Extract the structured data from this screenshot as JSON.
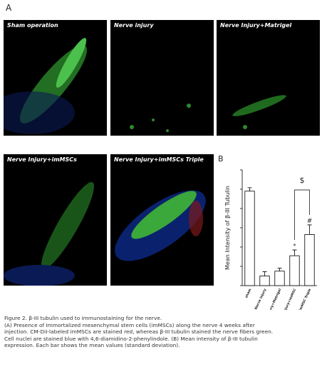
{
  "figure_label_a": "A",
  "figure_label_b": "B",
  "panels": [
    {
      "label": "Sham operation"
    },
    {
      "label": "Nerve injury"
    },
    {
      "label": "Nerve Injury+Matrigel"
    },
    {
      "label": "Nerve Injury+imMSCs"
    },
    {
      "label": "Nerve Injury+imMSCs Triple"
    }
  ],
  "chart_data": {
    "type": "bar",
    "y_label": "Mean Intensity of β-III Tubulin",
    "categories": [
      "sham",
      "Nerve injury",
      "Nerve Injury+Matrigel",
      "Nerve Injury+imMSC",
      "Nerve Injury+imMSC Triple"
    ],
    "values": [
      490,
      50,
      75,
      155,
      265
    ],
    "errors": [
      18,
      22,
      15,
      30,
      50
    ],
    "ylim": [
      0,
      600
    ],
    "yticks": [
      0,
      100,
      200,
      300,
      400,
      500,
      600
    ],
    "color": "#ffffff",
    "annotations": [
      "*",
      "#",
      "$"
    ]
  },
  "caption": [
    "Figure 2. β-III tubulin used to immunostaining for the nerve.",
    "(A) Presence of Immortalized mesenchymal stem cells (imMSCs) along the nerve 4 weeks after",
    "injection. CM-DiI-labeled imMSCs are stained red, whereas β-III tubulin stained the nerve fibers green.",
    "Cell nuclei are stained blue with 4,6-diamidino-2-phenylindole. (B) Mean intensity of β-III tubulin",
    "expression. Each bar shows the mean values (standard deviation)."
  ]
}
